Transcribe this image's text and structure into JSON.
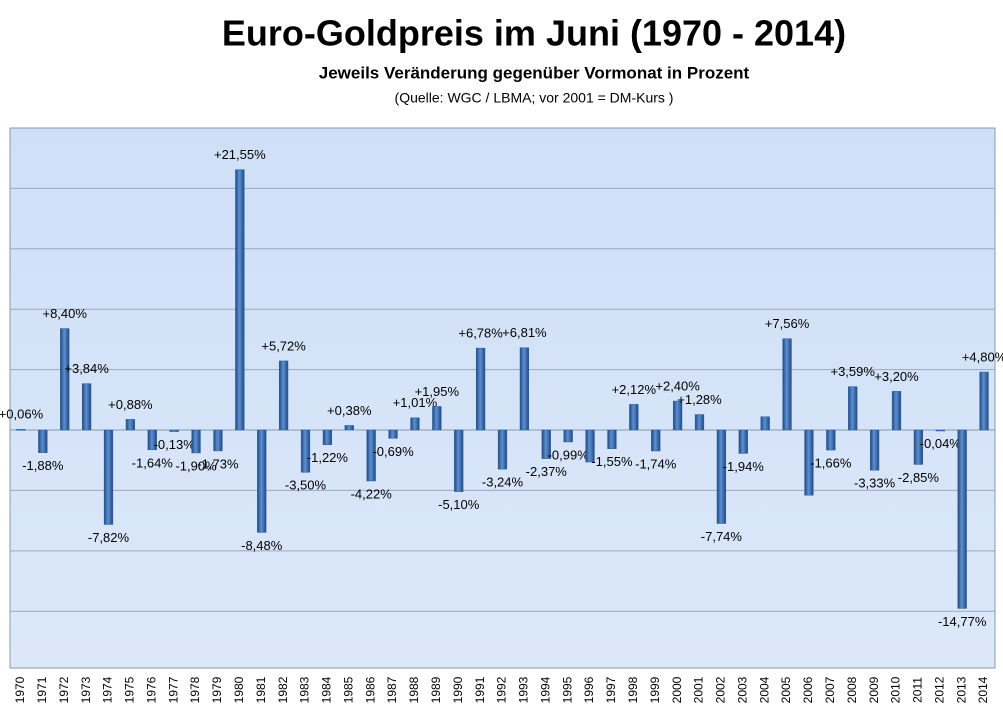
{
  "chart_data": {
    "type": "bar",
    "title": "Euro-Goldpreis im Juni (1970 - 2014)",
    "subtitle": "Jeweils Veränderung gegenüber Vormonat in Prozent",
    "source": "(Quelle: WGC / LBMA; vor 2001 = DM-Kurs )",
    "categories": [
      "1970",
      "1971",
      "1972",
      "1973",
      "1974",
      "1975",
      "1976",
      "1977",
      "1978",
      "1979",
      "1980",
      "1981",
      "1982",
      "1983",
      "1984",
      "1985",
      "1986",
      "1987",
      "1988",
      "1989",
      "1990",
      "1991",
      "1992",
      "1993",
      "1994",
      "1995",
      "1996",
      "1997",
      "1998",
      "1999",
      "2000",
      "2001",
      "2002",
      "2003",
      "2004",
      "2005",
      "2006",
      "2007",
      "2008",
      "2009",
      "2010",
      "2011",
      "2012",
      "2013",
      "2014"
    ],
    "values": [
      0.06,
      -1.88,
      8.4,
      3.84,
      -7.82,
      0.88,
      -1.64,
      -0.13,
      -1.9,
      -1.73,
      21.55,
      -8.48,
      5.72,
      -3.5,
      -1.22,
      0.38,
      -4.22,
      -0.69,
      1.01,
      1.95,
      -5.1,
      6.78,
      -3.24,
      6.81,
      -2.37,
      -0.99,
      -2.65,
      -1.55,
      2.12,
      -1.74,
      2.4,
      1.28,
      -7.74,
      -1.94,
      1.1,
      7.56,
      -5.4,
      -1.66,
      3.59,
      -3.33,
      3.2,
      -2.85,
      -0.04,
      -14.77,
      4.8
    ],
    "value_labels": [
      "+0,06%",
      "-1,88%",
      "+8,40%",
      "+3,84%",
      "-7,82%",
      "+0,88%",
      "-1,64%",
      "-0,13%",
      "-1,90%",
      "-1,73%",
      "+21,55%",
      "-8,48%",
      "+5,72%",
      "-3,50%",
      "-1,22%",
      "+0,38%",
      "-4,22%",
      "-0,69%",
      "+1,01%",
      "+1,95%",
      "-5,10%",
      "+6,78%",
      "-3,24%",
      "+6,81%",
      "-2,37%",
      "-0,99%",
      null,
      "-1,55%",
      "+2,12%",
      "-1,74%",
      "+2,40%",
      "+1,28%",
      "-7,74%",
      "-1,94%",
      null,
      "+7,56%",
      null,
      "-1,66%",
      "+3,59%",
      "-3,33%",
      "+3,20%",
      "-2,85%",
      "-0,04%",
      "-14,77%",
      "+4,80%"
    ],
    "color": "#2f5f9e",
    "ylim": [
      -19.7,
      25
    ],
    "yticks": [
      -15,
      -10,
      -5,
      0,
      5,
      10,
      15,
      20
    ],
    "grid": true
  }
}
